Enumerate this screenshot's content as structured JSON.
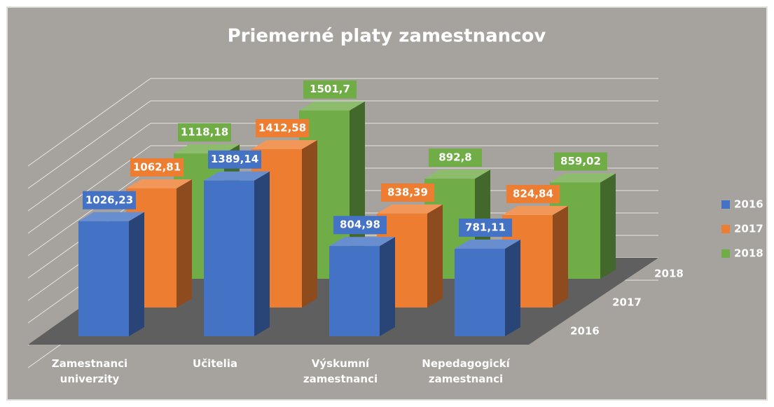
{
  "chart_data": {
    "type": "bar3d",
    "title": "Priemerné platy zamestnancov",
    "categories": [
      "Zamestnanci univerzity",
      "Učitelia",
      "Výskumní zamestnanci",
      "Nepedagogickí zamestnanci"
    ],
    "series": [
      {
        "name": "2016",
        "color": "#4472c4",
        "values": [
          1026.23,
          1389.14,
          804.98,
          781.11
        ],
        "value_labels": [
          "1026,23",
          "1389,14",
          "804,98",
          "781,11"
        ]
      },
      {
        "name": "2017",
        "color": "#ed7d31",
        "values": [
          1062.81,
          1412.58,
          838.39,
          824.84
        ],
        "value_labels": [
          "1062,81",
          "1412,58",
          "838,39",
          "824,84"
        ]
      },
      {
        "name": "2018",
        "color": "#70ad47",
        "values": [
          1118.18,
          1501.7,
          892.8,
          859.02
        ],
        "value_labels": [
          "1118,18",
          "1501,7",
          "892,8",
          "859,02"
        ]
      }
    ],
    "ylim": [
      0,
      1800
    ],
    "yticks": [
      0,
      200,
      400,
      600,
      800,
      1000,
      1200,
      1400,
      1600,
      1800
    ],
    "grid": true,
    "legend": "right"
  }
}
